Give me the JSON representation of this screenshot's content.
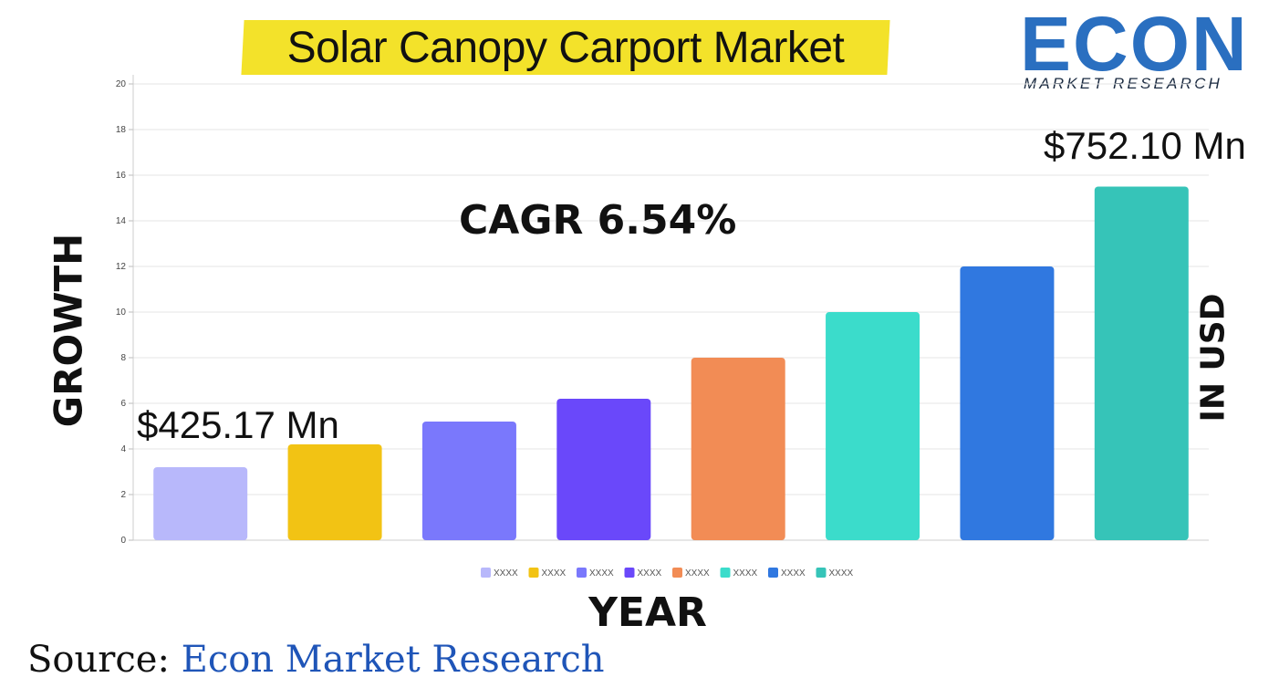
{
  "title": "Solar Canopy Carport Market",
  "logo": {
    "main": "ECON",
    "sub": "MARKET RESEARCH",
    "colors": {
      "primary": "#2a6fc0",
      "accent": "#a8c93a"
    }
  },
  "annotations": {
    "cagr": "CAGR 6.54%",
    "start_value": "$425.17 Mn",
    "end_value": "$752.10 Mn"
  },
  "source": {
    "label": "Source:",
    "name": "Econ Market Research"
  },
  "chart_data": {
    "type": "bar",
    "title": "Solar Canopy Carport Market",
    "xlabel": "YEAR",
    "ylabel": "GROWTH",
    "y_unit_label": "IN USD",
    "ylim": [
      0,
      20
    ],
    "yticks": [
      0,
      2,
      4,
      6,
      8,
      10,
      12,
      14,
      16,
      18,
      20
    ],
    "grid": true,
    "legend_position": "bottom",
    "categories": [
      "XXXX",
      "XXXX",
      "XXXX",
      "XXXX",
      "XXXX",
      "XXXX",
      "XXXX",
      "XXXX"
    ],
    "values": [
      3.2,
      4.2,
      5.2,
      6.2,
      8.0,
      10.0,
      12.0,
      15.5
    ],
    "colors": [
      "#b8b8fb",
      "#f2c314",
      "#7a78fc",
      "#6a48fa",
      "#f28c55",
      "#3bdccb",
      "#3078e0",
      "#36c4b8"
    ]
  }
}
